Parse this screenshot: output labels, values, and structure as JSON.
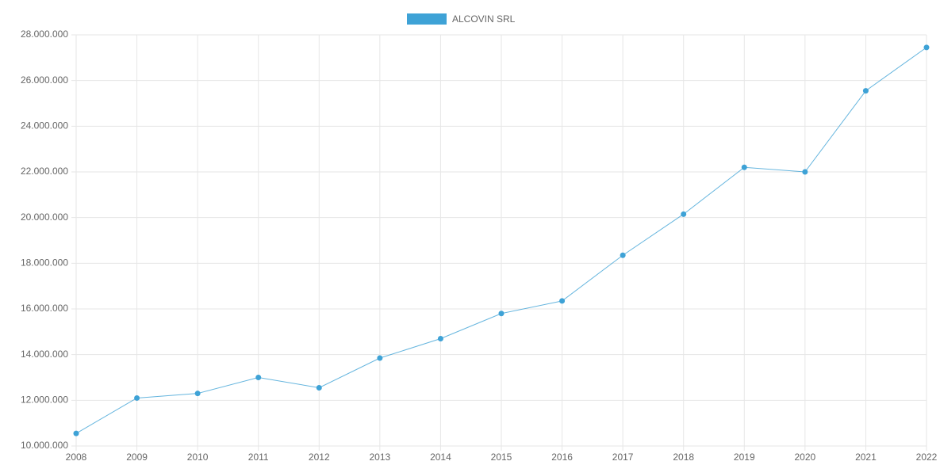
{
  "chart_data": {
    "type": "line",
    "categories": [
      "2008",
      "2009",
      "2010",
      "2011",
      "2012",
      "2013",
      "2014",
      "2015",
      "2016",
      "2017",
      "2018",
      "2019",
      "2020",
      "2021",
      "2022"
    ],
    "series": [
      {
        "name": "ALCOVIN SRL",
        "color": "#3ea2d6",
        "values": [
          10550000,
          12100000,
          12300000,
          13000000,
          12550000,
          13850000,
          14700000,
          15800000,
          16350000,
          18350000,
          20150000,
          22200000,
          22000000,
          25550000,
          27450000
        ]
      }
    ],
    "ylim": [
      10000000,
      28000000
    ],
    "yticks": [
      {
        "value": 10000000,
        "label": "10.000.000"
      },
      {
        "value": 12000000,
        "label": "12.000.000"
      },
      {
        "value": 14000000,
        "label": "14.000.000"
      },
      {
        "value": 16000000,
        "label": "16.000.000"
      },
      {
        "value": 18000000,
        "label": "18.000.000"
      },
      {
        "value": 20000000,
        "label": "20.000.000"
      },
      {
        "value": 22000000,
        "label": "22.000.000"
      },
      {
        "value": 24000000,
        "label": "24.000.000"
      },
      {
        "value": 26000000,
        "label": "26.000.000"
      },
      {
        "value": 28000000,
        "label": "28.000.000"
      }
    ],
    "grid": true,
    "legend": "top"
  }
}
